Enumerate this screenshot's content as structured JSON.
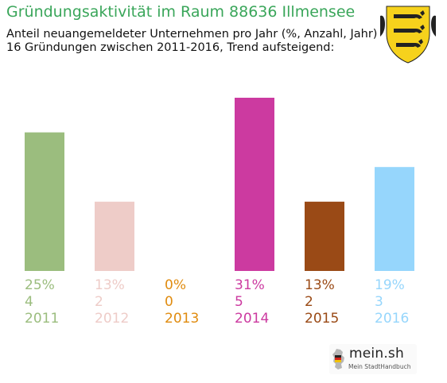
{
  "header": {
    "title": "Gründungsaktivität im Raum 88636 Illmensee",
    "subtitle_line1": "Anteil neuangemeldeter Unternehmen pro Jahr (%, Anzahl, Jahr)",
    "subtitle_line2": "16 Gründungen zwischen 2011-2016, Trend aufsteigend:"
  },
  "brand": {
    "name": "mein.sh",
    "tagline": "Mein StadtHandbuch"
  },
  "chart_data": {
    "type": "bar",
    "categories": [
      "2011",
      "2012",
      "2013",
      "2014",
      "2015",
      "2016"
    ],
    "values": [
      4,
      2,
      0,
      5,
      2,
      3
    ],
    "percent_labels": [
      "25%",
      "13%",
      "0%",
      "31%",
      "13%",
      "19%"
    ],
    "count_labels": [
      "4",
      "2",
      "0",
      "5",
      "2",
      "3"
    ],
    "colors": [
      "#9bbd7e",
      "#eeccc8",
      "#e08c10",
      "#cc3aa0",
      "#9a4a16",
      "#96d6fc"
    ],
    "ylim": [
      0,
      5
    ],
    "grid": false
  }
}
